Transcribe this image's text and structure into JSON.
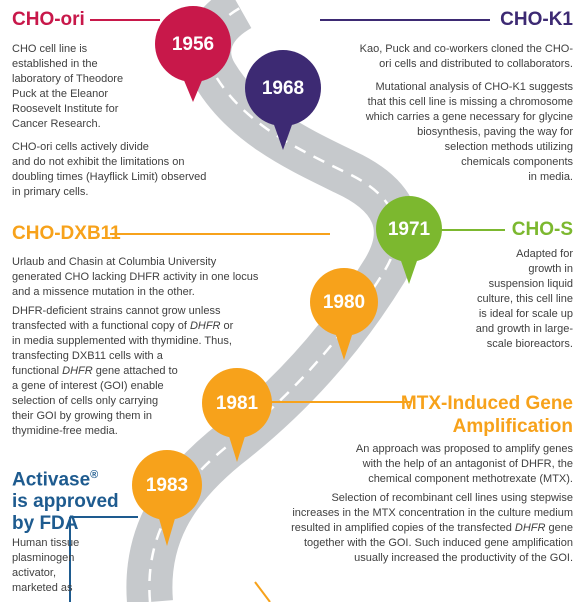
{
  "colors": {
    "cho_ori": "#c8184a",
    "cho_k1": "#3d2a73",
    "cho_s": "#7cb82f",
    "orange": "#f7a21b",
    "navy": "#1e5b8f",
    "road": "#c6c9cc",
    "lane": "#ffffff"
  },
  "milestones": [
    {
      "year": "1956"
    },
    {
      "year": "1968"
    },
    {
      "year": "1971"
    },
    {
      "year": "1980"
    },
    {
      "year": "1981"
    },
    {
      "year": "1983"
    }
  ],
  "cho_ori": {
    "title": "CHO-ori",
    "p1": [
      "CHO cell line is",
      "established in the",
      "laboratory of Theodore",
      "Puck at the Eleanor",
      "Roosevelt Institute for",
      "Cancer Research."
    ],
    "p2": [
      "CHO-ori cells actively divide",
      "and do not exhibit the limitations on",
      "doubling times (Hayflick Limit) observed",
      "in primary cells."
    ]
  },
  "cho_k1": {
    "title": "CHO-K1",
    "p1": [
      "Kao, Puck and co-workers cloned the CHO-",
      "ori cells and distributed to collaborators."
    ],
    "p2": [
      "Mutational analysis of CHO-K1 suggests",
      "that this cell line is missing a chromosome",
      "which carries a gene necessary for glycine",
      "biosynthesis, paving the way for",
      "selection methods utilizing",
      "chemicals components",
      "in media."
    ]
  },
  "cho_s": {
    "title": "CHO-S",
    "p1": [
      "Adapted for",
      "growth in",
      "suspension liquid",
      "culture, this cell line",
      "is ideal for scale up",
      "and growth in large-",
      "scale bioreactors."
    ]
  },
  "cho_dxb11": {
    "title": "CHO-DXB11",
    "p1": [
      "Urlaub and Chasin at Columbia University",
      "generated CHO lacking DHFR activity in one locus",
      "and a missence mutation in the other."
    ],
    "p2_l1": "DHFR-deficient strains cannot grow unless",
    "p2_l2a": "transfected with a functional copy of ",
    "p2_l2i": "DHFR",
    "p2_l2b": " or",
    "p2_l3": "in media supplemented with thymidine. Thus,",
    "p2_l4": "transfecting DXB11 cells with a",
    "p2_l5a": "functional ",
    "p2_l5i": "DHFR",
    "p2_l5b": " gene attached to",
    "p2_l6": "a gene of interest (GOI) enable",
    "p2_l7": "selection of cells only carrying",
    "p2_l8": "their GOI by growing them in",
    "p2_l9": "thymidine-free media."
  },
  "mtx": {
    "title_l1": "MTX-Induced Gene",
    "title_l2": "Amplification",
    "p1": [
      "An approach was proposed to amplify genes",
      "with the help of an antagonist of DHFR, the",
      "chemical component methotrexate (MTX)."
    ],
    "p2_l1": "Selection of recombinant cell lines using stepwise",
    "p2_l2": "increases in the MTX concentration in the culture medium",
    "p2_l3a": "resulted in amplified copies of the transfected ",
    "p2_l3i": "DHFR",
    "p2_l3b": " gene",
    "p2_l4": "together with the GOI. Such induced gene amplification",
    "p2_l5": "usually increased the productivity of the GOI."
  },
  "activase": {
    "title_l1": "Activase",
    "title_sup": "®",
    "title_l2": "is approved",
    "title_l3": "by FDA",
    "p1": [
      "Human tissue",
      "plasminogen",
      "activator,",
      "marketed as"
    ]
  }
}
